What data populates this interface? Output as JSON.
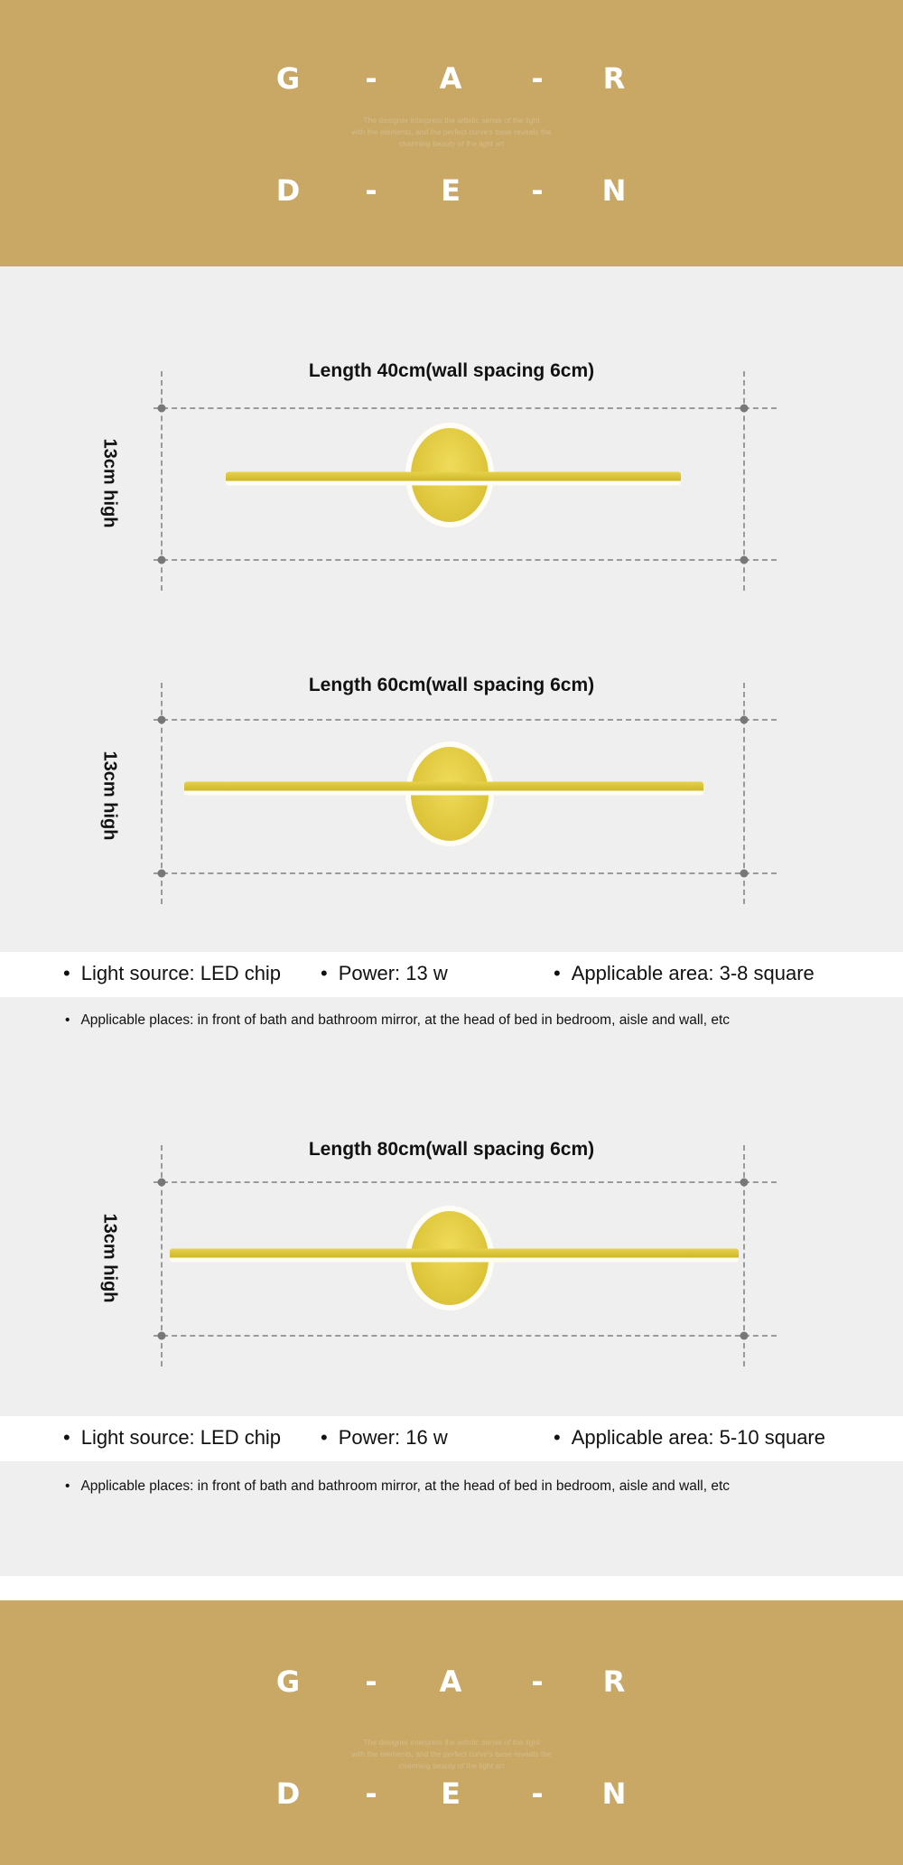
{
  "brand": {
    "row1": [
      "G",
      "-",
      "A",
      "-",
      "R"
    ],
    "row2": [
      "D",
      "-",
      "E",
      "-",
      "N"
    ],
    "tagline": [
      "The designer interprets the artistic sense of the light",
      "with the elements, and the perfect curve's base reveals the",
      "charming beauty of the light art"
    ]
  },
  "colors": {
    "gold": "#c9a866",
    "background": "#efefef",
    "lamp": "#d9c03a"
  },
  "products": [
    {
      "title": "Length 40cm(wall spacing 6cm)",
      "height_label": "13cm high"
    },
    {
      "title": "Length 60cm(wall spacing 6cm)",
      "height_label": "13cm high",
      "specs": {
        "light_source": "Light source: LED chip",
        "power": "Power: 13 w",
        "area": "Applicable area: 3-8 square",
        "places": "Applicable places: in front of bath and bathroom mirror, at the head of bed in bedroom, aisle and wall, etc"
      }
    },
    {
      "title": "Length 80cm(wall spacing 6cm)",
      "height_label": "13cm high",
      "specs": {
        "light_source": "Light source: LED chip",
        "power": "Power: 16 w",
        "area": "Applicable area: 5-10 square",
        "places": "Applicable places: in front of bath and bathroom mirror, at the head of bed in bedroom, aisle and wall, etc"
      }
    }
  ]
}
